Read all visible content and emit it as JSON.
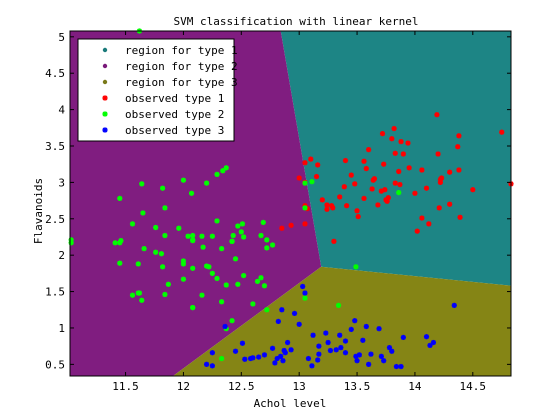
{
  "chart_data": {
    "type": "scatter",
    "title": "SVM classification with linear kernel",
    "xlabel": "Achol level",
    "ylabel": "Flavanoids",
    "xlim": [
      11.02,
      14.83
    ],
    "ylim": [
      0.34,
      5.08
    ],
    "x_ticks": [
      "11.5",
      "12",
      "12.5",
      "13",
      "13.5",
      "14",
      "14.5"
    ],
    "y_ticks": [
      "0.5",
      "1",
      "1.5",
      "2",
      "2.5",
      "3",
      "3.5",
      "4",
      "4.5",
      "5"
    ],
    "grid": false,
    "legend_position": "top-left",
    "regions": [
      {
        "name": "region for type 1",
        "color": "#1d8585",
        "marker_color": "#1a7a7a",
        "polygon": [
          [
            12.84,
            5.08
          ],
          [
            14.83,
            5.08
          ],
          [
            14.83,
            1.58
          ],
          [
            13.19,
            1.84
          ]
        ]
      },
      {
        "name": "region for type 2",
        "color": "#801d80",
        "marker_color": "#7a1a7a",
        "polygon": [
          [
            11.02,
            5.08
          ],
          [
            12.84,
            5.08
          ],
          [
            13.19,
            1.84
          ],
          [
            11.91,
            0.34
          ],
          [
            11.02,
            0.34
          ]
        ]
      },
      {
        "name": "region for type 3",
        "color": "#858515",
        "marker_color": "#7a7a1a",
        "polygon": [
          [
            13.19,
            1.84
          ],
          [
            14.83,
            1.58
          ],
          [
            14.83,
            0.34
          ],
          [
            11.91,
            0.34
          ]
        ]
      }
    ],
    "series": [
      {
        "name": "observed type 1",
        "color": "#ff0000",
        "points": [
          [
            14.23,
            3.06
          ],
          [
            13.2,
            2.76
          ],
          [
            13.16,
            3.24
          ],
          [
            14.37,
            3.49
          ],
          [
            13.24,
            2.69
          ],
          [
            14.2,
            3.39
          ],
          [
            14.39,
            2.52
          ],
          [
            14.06,
            2.51
          ],
          [
            14.83,
            2.98
          ],
          [
            13.86,
            3.15
          ],
          [
            13.1,
            3.32
          ],
          [
            14.12,
            2.43
          ],
          [
            13.75,
            2.76
          ],
          [
            14.75,
            3.69
          ],
          [
            14.38,
            3.64
          ],
          [
            13.63,
            2.91
          ],
          [
            14.3,
            3.14
          ],
          [
            13.83,
            3.4
          ],
          [
            14.19,
            3.93
          ],
          [
            13.64,
            3.03
          ],
          [
            14.06,
            3.17
          ],
          [
            12.93,
            2.41
          ],
          [
            13.71,
            2.88
          ],
          [
            12.85,
            2.37
          ],
          [
            13.5,
            2.61
          ],
          [
            13.05,
            2.68
          ],
          [
            13.39,
            2.94
          ],
          [
            13.3,
            2.19
          ],
          [
            13.87,
            2.97
          ],
          [
            14.02,
            2.33
          ],
          [
            13.73,
            3.25
          ],
          [
            13.58,
            3.19
          ],
          [
            13.68,
            2.69
          ],
          [
            13.76,
            2.74
          ],
          [
            13.51,
            2.53
          ],
          [
            13.48,
            2.98
          ],
          [
            13.28,
            2.68
          ],
          [
            13.05,
            2.43
          ],
          [
            13.07,
            2.64
          ],
          [
            14.22,
            3.04
          ],
          [
            13.56,
            3.29
          ],
          [
            13.41,
            2.68
          ],
          [
            13.88,
            3.56
          ],
          [
            13.24,
            2.63
          ],
          [
            13.05,
            3.0
          ],
          [
            14.21,
            2.65
          ],
          [
            14.38,
            3.17
          ],
          [
            13.9,
            3.39
          ],
          [
            14.1,
            2.92
          ],
          [
            13.94,
            3.54
          ],
          [
            13.05,
            3.27
          ],
          [
            13.83,
            2.99
          ],
          [
            13.82,
            3.74
          ],
          [
            13.77,
            2.79
          ],
          [
            13.74,
            2.9
          ],
          [
            13.56,
            2.78
          ],
          [
            14.22,
            3.0
          ],
          [
            13.29,
            2.65
          ],
          [
            13.72,
            3.67
          ],
          [
            13.0,
            3.06
          ],
          [
            13.15,
            3.08
          ],
          [
            13.4,
            3.3
          ],
          [
            13.6,
            3.45
          ],
          [
            13.95,
            3.2
          ],
          [
            14.0,
            2.85
          ],
          [
            13.35,
            2.8
          ],
          [
            13.65,
            3.05
          ],
          [
            13.45,
            3.1
          ],
          [
            14.3,
            2.7
          ],
          [
            13.8,
            3.6
          ],
          [
            14.5,
            2.9
          ]
        ]
      },
      {
        "name": "observed type 2",
        "color": "#00ff00",
        "points": [
          [
            11.62,
            5.08
          ],
          [
            11.03,
            2.17
          ],
          [
            11.45,
            2.78
          ],
          [
            11.56,
            2.43
          ],
          [
            11.66,
            2.09
          ],
          [
            11.84,
            2.65
          ],
          [
            11.76,
            2.38
          ],
          [
            12.08,
            1.28
          ],
          [
            12.33,
            1.36
          ],
          [
            12.37,
            1.59
          ],
          [
            12.17,
            2.11
          ],
          [
            12.37,
            0.99
          ],
          [
            13.34,
            1.31
          ],
          [
            12.29,
            3.11
          ],
          [
            12.04,
            2.26
          ],
          [
            12.42,
            1.1
          ],
          [
            13.05,
            1.41
          ],
          [
            12.0,
            1.92
          ],
          [
            12.08,
            1.28
          ],
          [
            11.82,
            2.92
          ],
          [
            12.16,
            2.26
          ],
          [
            12.47,
            1.6
          ],
          [
            12.72,
            1.25
          ],
          [
            12.2,
            2.99
          ],
          [
            12.67,
            2.27
          ],
          [
            11.64,
            2.98
          ],
          [
            12.52,
            2.25
          ],
          [
            11.87,
            1.6
          ],
          [
            12.6,
            1.33
          ],
          [
            12.51,
            2.43
          ],
          [
            12.42,
            2.19
          ],
          [
            12.25,
            2.26
          ],
          [
            12.72,
            2.1
          ],
          [
            12.22,
            1.84
          ],
          [
            11.61,
            1.88
          ],
          [
            11.46,
            2.2
          ],
          [
            12.52,
            1.72
          ],
          [
            11.76,
            2.04
          ],
          [
            11.41,
            2.17
          ],
          [
            12.08,
            2.27
          ],
          [
            11.03,
            2.21
          ],
          [
            11.82,
            1.84
          ],
          [
            12.42,
            2.19
          ],
          [
            12.77,
            2.14
          ],
          [
            12.0,
            1.88
          ],
          [
            11.45,
            2.17
          ],
          [
            11.56,
            1.45
          ],
          [
            12.43,
            2.27
          ],
          [
            13.05,
            2.65
          ],
          [
            11.84,
            2.27
          ],
          [
            12.33,
            2.09
          ],
          [
            12.7,
            1.58
          ],
          [
            12.0,
            3.03
          ],
          [
            12.72,
            2.21
          ],
          [
            12.08,
            2.2
          ],
          [
            13.05,
            2.99
          ],
          [
            11.84,
            1.46
          ],
          [
            12.67,
            1.69
          ],
          [
            12.16,
            1.45
          ],
          [
            11.65,
            2.58
          ],
          [
            11.64,
            1.38
          ],
          [
            12.08,
            2.21
          ],
          [
            12.08,
            1.82
          ],
          [
            12.0,
            1.67
          ],
          [
            12.69,
            2.45
          ],
          [
            12.29,
            2.47
          ],
          [
            11.62,
            1.48
          ],
          [
            12.47,
            2.4
          ],
          [
            11.81,
            2.02
          ],
          [
            12.29,
            1.68
          ],
          [
            12.37,
            3.2
          ],
          [
            12.34,
            3.16
          ],
          [
            11.61,
            1.48
          ],
          [
            12.5,
            2.32
          ],
          [
            11.45,
            1.89
          ],
          [
            12.64,
            1.64
          ],
          [
            13.49,
            1.84
          ],
          [
            13.86,
            2.86
          ],
          [
            13.11,
            3.01
          ],
          [
            12.25,
            1.75
          ],
          [
            12.33,
            0.58
          ],
          [
            12.07,
            2.85
          ],
          [
            12.2,
            1.85
          ],
          [
            12.45,
            1.95
          ],
          [
            11.96,
            2.37
          ]
        ]
      },
      {
        "name": "observed type 3",
        "color": "#0000ff",
        "points": [
          [
            12.86,
            0.55
          ],
          [
            12.88,
            0.66
          ],
          [
            12.81,
            0.58
          ],
          [
            12.7,
            0.63
          ],
          [
            12.51,
            0.79
          ],
          [
            12.6,
            0.59
          ],
          [
            12.25,
            0.48
          ],
          [
            12.53,
            0.57
          ],
          [
            13.49,
            0.61
          ],
          [
            12.84,
            0.61
          ],
          [
            12.93,
            0.7
          ],
          [
            13.36,
            0.73
          ],
          [
            13.52,
            0.63
          ],
          [
            13.62,
            0.64
          ],
          [
            12.25,
            0.66
          ],
          [
            13.16,
            0.56
          ],
          [
            13.88,
            0.47
          ],
          [
            12.87,
            0.69
          ],
          [
            13.32,
            0.7
          ],
          [
            13.08,
            0.58
          ],
          [
            13.5,
            0.55
          ],
          [
            12.79,
            0.52
          ],
          [
            13.11,
            0.48
          ],
          [
            13.23,
            0.93
          ],
          [
            12.58,
            0.58
          ],
          [
            13.17,
            0.64
          ],
          [
            13.84,
            0.47
          ],
          [
            12.45,
            0.68
          ],
          [
            14.34,
            1.31
          ],
          [
            13.48,
            1.1
          ],
          [
            12.36,
            1.02
          ],
          [
            13.69,
            0.99
          ],
          [
            12.85,
            1.25
          ],
          [
            12.96,
            1.2
          ],
          [
            13.78,
            0.73
          ],
          [
            13.73,
            0.55
          ],
          [
            13.45,
            0.98
          ],
          [
            12.82,
            1.09
          ],
          [
            13.58,
            1.02
          ],
          [
            13.4,
            0.82
          ],
          [
            12.2,
            0.5
          ],
          [
            12.77,
            0.72
          ],
          [
            14.16,
            0.8
          ],
          [
            13.71,
            0.61
          ],
          [
            13.4,
            0.66
          ],
          [
            13.27,
            0.69
          ],
          [
            13.17,
            0.75
          ],
          [
            14.13,
            0.76
          ],
          [
            13.03,
            1.57
          ],
          [
            13.05,
            1.48
          ],
          [
            13.55,
            0.83
          ],
          [
            13.9,
            0.87
          ],
          [
            13.0,
            1.05
          ],
          [
            12.9,
            0.8
          ],
          [
            13.25,
            0.8
          ],
          [
            13.6,
            0.5
          ],
          [
            13.8,
            0.68
          ],
          [
            14.1,
            0.88
          ],
          [
            13.35,
            0.9
          ],
          [
            12.65,
            0.6
          ],
          [
            13.12,
            0.9
          ]
        ]
      }
    ]
  }
}
